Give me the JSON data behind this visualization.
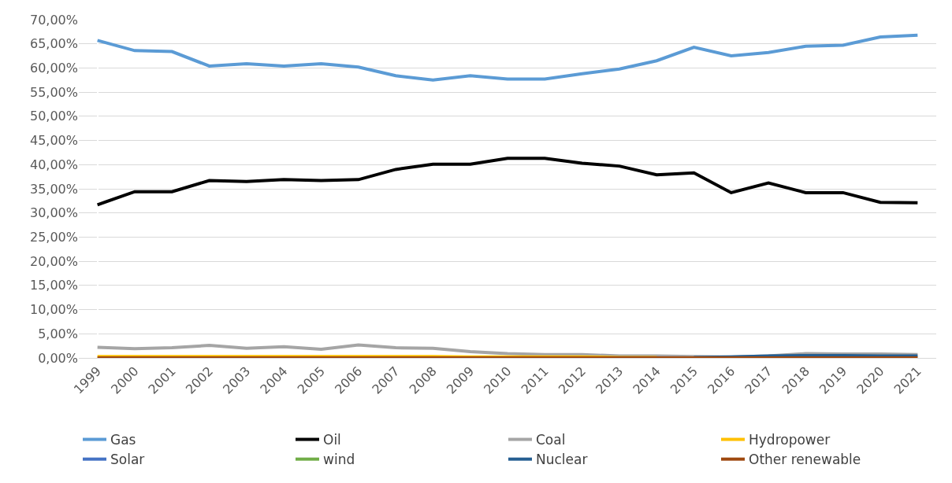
{
  "chart_data": {
    "type": "line",
    "categories": [
      "1999",
      "2000",
      "2001",
      "2002",
      "2003",
      "2004",
      "2005",
      "2006",
      "2007",
      "2008",
      "2009",
      "2010",
      "2011",
      "2012",
      "2013",
      "2014",
      "2015",
      "2016",
      "2017",
      "2018",
      "2019",
      "2020",
      "2021"
    ],
    "series": [
      {
        "name": "Gas",
        "color": "#5b9bd5",
        "values": [
          65.7,
          63.6,
          63.4,
          60.4,
          60.9,
          60.4,
          60.9,
          60.2,
          58.4,
          57.5,
          58.4,
          57.7,
          57.7,
          58.8,
          59.8,
          61.5,
          64.3,
          62.5,
          63.2,
          64.5,
          64.7,
          66.4,
          66.8
        ]
      },
      {
        "name": "Oil",
        "color": "#000000",
        "values": [
          31.7,
          34.4,
          34.4,
          36.7,
          36.5,
          36.9,
          36.7,
          36.9,
          39.0,
          40.1,
          40.1,
          41.3,
          41.3,
          40.3,
          39.7,
          37.9,
          38.3,
          34.2,
          36.2,
          34.2,
          34.2,
          32.2,
          32.1
        ]
      },
      {
        "name": "Coal",
        "color": "#a5a5a5",
        "values": [
          2.2,
          1.9,
          2.1,
          2.6,
          2.0,
          2.3,
          1.8,
          2.7,
          2.1,
          2.0,
          1.3,
          0.9,
          0.7,
          0.7,
          0.4,
          0.4,
          0.3,
          0.2,
          0.4,
          0.9,
          0.8,
          0.8,
          0.7
        ]
      },
      {
        "name": "Hydropower",
        "color": "#ffc000",
        "values": [
          0.3,
          0.3,
          0.3,
          0.3,
          0.3,
          0.3,
          0.3,
          0.3,
          0.3,
          0.3,
          0.2,
          0.2,
          0.2,
          0.2,
          0.1,
          0.1,
          null,
          null,
          null,
          null,
          null,
          null,
          null
        ]
      },
      {
        "name": "Solar",
        "color": "#4472c4",
        "values": [
          null,
          null,
          null,
          null,
          null,
          null,
          null,
          null,
          null,
          null,
          null,
          null,
          null,
          null,
          null,
          null,
          null,
          null,
          null,
          null,
          null,
          null,
          null
        ]
      },
      {
        "name": "wind",
        "color": "#70ad47",
        "values": [
          null,
          null,
          null,
          null,
          null,
          null,
          null,
          null,
          null,
          null,
          null,
          null,
          null,
          null,
          null,
          null,
          null,
          null,
          null,
          null,
          null,
          null,
          null
        ]
      },
      {
        "name": "Nuclear",
        "color": "#255e91",
        "values": [
          null,
          null,
          null,
          null,
          null,
          null,
          null,
          null,
          null,
          null,
          null,
          null,
          null,
          null,
          null,
          null,
          0.1,
          0.2,
          0.4,
          0.5,
          0.5,
          0.4,
          0.4
        ]
      },
      {
        "name": "Other renewable",
        "color": "#9e480e",
        "values": [
          0,
          0,
          0,
          0,
          0,
          0,
          0,
          0,
          0,
          0,
          0,
          0,
          0,
          0,
          0,
          0,
          0,
          0,
          0,
          0,
          0,
          0,
          0
        ]
      }
    ],
    "ylim": [
      0,
      70
    ],
    "yticks": [
      {
        "value": 0,
        "label": "0,00%"
      },
      {
        "value": 5,
        "label": "5,00%"
      },
      {
        "value": 10,
        "label": "10,00%"
      },
      {
        "value": 15,
        "label": "15,00%"
      },
      {
        "value": 20,
        "label": "20,00%"
      },
      {
        "value": 25,
        "label": "25,00%"
      },
      {
        "value": 30,
        "label": "30,00%"
      },
      {
        "value": 35,
        "label": "35,00%"
      },
      {
        "value": 40,
        "label": "40,00%"
      },
      {
        "value": 45,
        "label": "45,00%"
      },
      {
        "value": 50,
        "label": "50,00%"
      },
      {
        "value": 55,
        "label": "55,00%"
      },
      {
        "value": 60,
        "label": "60,00%"
      },
      {
        "value": 65,
        "label": "65,00%"
      },
      {
        "value": 70,
        "label": "70,00%"
      }
    ],
    "grid": "y",
    "legend": "bottom",
    "marker": "none",
    "line_style": "solid"
  }
}
